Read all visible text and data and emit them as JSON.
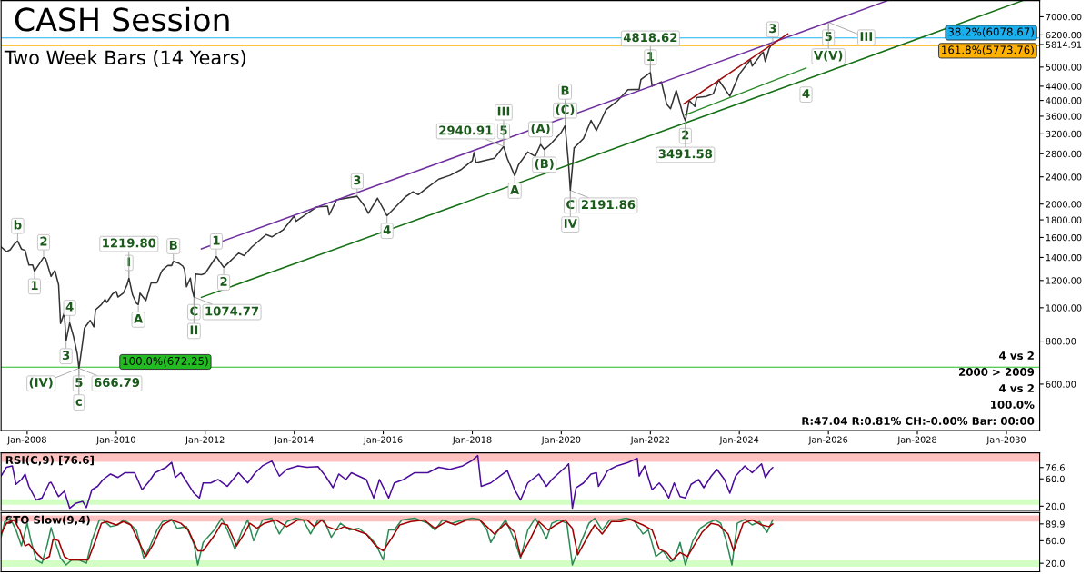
{
  "chart_data": [
    {
      "type": "line",
      "title": "CASH Session",
      "subtitle": "Two Week Bars (14 Years)",
      "log": "y",
      "grid": false,
      "xlim": [
        "2007-06-01",
        "2030-10-01"
      ],
      "ylim": [
        440,
        7800
      ],
      "xticks": [
        {
          "value": "2008-01-01",
          "label": "Jan-2008"
        },
        {
          "value": "2010-01-01",
          "label": "Jan-2010"
        },
        {
          "value": "2012-01-01",
          "label": "Jan-2012"
        },
        {
          "value": "2014-01-01",
          "label": "Jan-2014"
        },
        {
          "value": "2016-01-01",
          "label": "Jan-2016"
        },
        {
          "value": "2018-01-01",
          "label": "Jan-2018"
        },
        {
          "value": "2020-01-01",
          "label": "Jan-2020"
        },
        {
          "value": "2022-01-01",
          "label": "Jan-2022"
        },
        {
          "value": "2024-01-01",
          "label": "Jan-2024"
        },
        {
          "value": "2026-01-01",
          "label": "Jan-2026"
        },
        {
          "value": "2028-01-01",
          "label": "Jan-2028"
        },
        {
          "value": "2030-01-01",
          "label": "Jan-2030"
        }
      ],
      "yticks": [
        {
          "value": 600,
          "label": "600.00"
        },
        {
          "value": 800,
          "label": "800.00"
        },
        {
          "value": 1000,
          "label": "1000.00"
        },
        {
          "value": 1200,
          "label": "1200.00"
        },
        {
          "value": 1400,
          "label": "1400.00"
        },
        {
          "value": 1600,
          "label": "1600.00"
        },
        {
          "value": 1800,
          "label": "1800.00"
        },
        {
          "value": 2000,
          "label": "2000.00"
        },
        {
          "value": 2400,
          "label": "2400.00"
        },
        {
          "value": 2800,
          "label": "2800.00"
        },
        {
          "value": 3200,
          "label": "3200.00"
        },
        {
          "value": 3600,
          "label": "3600.00"
        },
        {
          "value": 4000,
          "label": "4000.00"
        },
        {
          "value": 4400,
          "label": "4400.00"
        },
        {
          "value": 5000,
          "label": "5000.00"
        },
        {
          "value": 5814.91,
          "label": "5814.91"
        },
        {
          "value": 6200,
          "label": "6200.00"
        },
        {
          "value": 7000,
          "label": "7000.00"
        }
      ],
      "series": [
        {
          "color": "#333333",
          "x": [
            "2007-06-01",
            "2007-07-15",
            "2007-08-15",
            "2007-09-15",
            "2007-10-15",
            "2007-11-15",
            "2007-12-15",
            "2008-01-15",
            "2008-02-15",
            "2008-03-01",
            "2008-05-15",
            "2008-06-01",
            "2008-07-01",
            "2008-07-15",
            "2008-08-15",
            "2008-09-15",
            "2008-10-01",
            "2008-11-01",
            "2008-11-15",
            "2008-12-15",
            "2009-01-15",
            "2009-02-15",
            "2009-03-01",
            "2009-04-01",
            "2009-04-15",
            "2009-06-01",
            "2009-07-01",
            "2009-07-15",
            "2009-09-01",
            "2009-10-01",
            "2009-10-15",
            "2009-12-01",
            "2010-01-01",
            "2010-01-15",
            "2010-03-01",
            "2010-04-01",
            "2010-04-15",
            "2010-05-15",
            "2010-06-15",
            "2010-07-01",
            "2010-07-15",
            "2010-09-01",
            "2010-10-01",
            "2010-10-15",
            "2010-12-01",
            "2011-01-01",
            "2011-01-15",
            "2011-03-01",
            "2011-04-01",
            "2011-04-15",
            "2011-06-01",
            "2011-07-01",
            "2011-07-15",
            "2011-08-01",
            "2011-09-01",
            "2011-09-15",
            "2011-10-01",
            "2011-10-15",
            "2011-12-01",
            "2012-01-01",
            "2012-04-01",
            "2012-06-01",
            "2012-10-01",
            "2012-11-15",
            "2013-01-15",
            "2013-05-15",
            "2013-07-01",
            "2013-10-01",
            "2014-01-01",
            "2014-01-15",
            "2014-07-01",
            "2014-10-01",
            "2014-10-15",
            "2014-12-15",
            "2015-06-01",
            "2015-08-01",
            "2015-09-01",
            "2015-11-15",
            "2016-01-15",
            "2016-02-01",
            "2016-07-01",
            "2016-09-01",
            "2016-10-15",
            "2017-01-01",
            "2017-04-01",
            "2017-07-01",
            "2017-10-01",
            "2018-01-01",
            "2018-01-15",
            "2018-02-01",
            "2018-07-01",
            "2018-09-15",
            "2018-10-15",
            "2018-12-15",
            "2019-01-15",
            "2019-04-01",
            "2019-06-01",
            "2019-07-15",
            "2019-08-15",
            "2019-10-01",
            "2020-01-01",
            "2020-02-01",
            "2020-03-01",
            "2020-03-15",
            "2020-04-15",
            "2020-07-01",
            "2020-09-01",
            "2020-10-15",
            "2021-01-01",
            "2021-04-01",
            "2021-07-01",
            "2021-10-01",
            "2021-10-15",
            "2022-01-01",
            "2022-01-15",
            "2022-04-01",
            "2022-05-15",
            "2022-06-15",
            "2022-08-01",
            "2022-10-01",
            "2022-10-15",
            "2022-11-15",
            "2023-01-01",
            "2023-01-15",
            "2023-04-01",
            "2023-06-01",
            "2023-07-15",
            "2023-10-15",
            "2024-01-01",
            "2024-04-01",
            "2024-04-15",
            "2024-07-01",
            "2024-07-15",
            "2024-08-01",
            "2024-09-01",
            "2024-09-15",
            "2024-10-01"
          ],
          "values": [
            1503,
            1455,
            1474,
            1527,
            1562,
            1481,
            1468,
            1331,
            1331,
            1276,
            1400,
            1388,
            1280,
            1234,
            1283,
            1166,
            900,
            968,
            800,
            903,
            826,
            735,
            666.79,
            798,
            873,
            919,
            880,
            987,
            1021,
            1057,
            1036,
            1096,
            1115,
            1074,
            1104,
            1169,
            1219.8,
            1089,
            1031,
            1022,
            1102,
            1049,
            1141,
            1183,
            1181,
            1258,
            1286,
            1327,
            1326,
            1364,
            1345,
            1321,
            1292,
            1150,
            1219,
            1131,
            1074.77,
            1253,
            1247,
            1258,
            1408,
            1310,
            1441,
            1416,
            1498,
            1631,
            1606,
            1682,
            1848,
            1783,
            1960,
            1972,
            1862,
            2059,
            2107,
            1972,
            1880,
            2080,
            1900,
            1850,
            2099,
            2171,
            2130,
            2239,
            2363,
            2423,
            2519,
            2674,
            2824,
            2640,
            2718,
            2940.91,
            2712,
            2420,
            2600,
            2834,
            2752,
            2980,
            2880,
            2977,
            3231,
            3380,
            2600,
            2191.86,
            2912,
            3100,
            3500,
            3270,
            3756,
            3973,
            4298,
            4308,
            4600,
            4818.62,
            4400,
            4530,
            3900,
            3785,
            4280,
            3586,
            3491.58,
            4000,
            3840,
            4077,
            4109,
            4180,
            4589,
            4117,
            4770,
            5254,
            5036,
            5460,
            5522,
            5186,
            5648,
            5762,
            5815
          ]
        },
        {
          "color": "#7030a0",
          "x": [
            "2011-12-01",
            "2026-01-01",
            "2027-05-01"
          ],
          "values": [
            1483,
            6745,
            7800
          ]
        },
        {
          "color": "#157015",
          "x": [
            "2011-12-01",
            "2025-07-01",
            "2030-05-15"
          ],
          "values": [
            1072,
            4603,
            7800
          ]
        },
        {
          "color": "#2e8b2e",
          "x": [
            "2022-10-15",
            "2025-07-01"
          ],
          "values": [
            3633,
            4968
          ]
        },
        {
          "color": "#a01010",
          "x": [
            "2022-10-01",
            "2025-02-01"
          ],
          "values": [
            3906,
            6240
          ]
        }
      ],
      "ref_lines": [
        {
          "axis": "y",
          "value": 672.25,
          "label": "100.0%(672.25)",
          "color": "#22bb22"
        },
        {
          "axis": "y",
          "value": 5773.76,
          "label": "161.8%(5773.76)",
          "color": "#ffb000"
        },
        {
          "axis": "y",
          "value": 6078.67,
          "label": "38.2%(6078.67)",
          "color": "#1ab0f0"
        }
      ],
      "annotations": [
        {
          "text": "b",
          "x": "2007-10-15",
          "y": 1562
        },
        {
          "text": "1",
          "x": "2008-03-01",
          "y": 1276
        },
        {
          "text": "2",
          "x": "2008-05-15",
          "y": 1400
        },
        {
          "text": "3",
          "x": "2008-11-15",
          "y": 800
        },
        {
          "text": "4",
          "x": "2008-12-15",
          "y": 903
        },
        {
          "text": "5",
          "x": "2009-03-01",
          "y": 666.79
        },
        {
          "text": "c",
          "x": "2009-03-01",
          "y": 666.79
        },
        {
          "text": "666.79",
          "x": "2009-03-01",
          "y": 666.79
        },
        {
          "text": "(IV)",
          "x": "2009-03-01",
          "y": 666.79
        },
        {
          "text": "I",
          "x": "2010-04-15",
          "y": 1219.8
        },
        {
          "text": "1219.80",
          "x": "2010-04-15",
          "y": 1219.8
        },
        {
          "text": "A",
          "x": "2010-07-01",
          "y": 1022
        },
        {
          "text": "B",
          "x": "2011-04-15",
          "y": 1364
        },
        {
          "text": "C",
          "x": "2011-10-01",
          "y": 1074.77
        },
        {
          "text": "II",
          "x": "2011-10-01",
          "y": 1074.77
        },
        {
          "text": "1074.77",
          "x": "2011-10-01",
          "y": 1074.77
        },
        {
          "text": "1",
          "x": "2012-04-01",
          "y": 1408
        },
        {
          "text": "2",
          "x": "2012-06-01",
          "y": 1310
        },
        {
          "text": "3",
          "x": "2015-06-01",
          "y": 2107
        },
        {
          "text": "4",
          "x": "2016-02-01",
          "y": 1850
        },
        {
          "text": "5",
          "x": "2018-09-15",
          "y": 2940.91
        },
        {
          "text": "III",
          "x": "2018-09-15",
          "y": 2940.91
        },
        {
          "text": "2940.91",
          "x": "2018-09-15",
          "y": 2940.91
        },
        {
          "text": "A",
          "x": "2018-12-15",
          "y": 2420
        },
        {
          "text": "(A)",
          "x": "2019-07-15",
          "y": 2980
        },
        {
          "text": "(B)",
          "x": "2019-08-15",
          "y": 2880
        },
        {
          "text": "(C)",
          "x": "2020-02-01",
          "y": 3380
        },
        {
          "text": "B",
          "x": "2020-02-01",
          "y": 3380
        },
        {
          "text": "C",
          "x": "2020-03-15",
          "y": 2191.86
        },
        {
          "text": "IV",
          "x": "2020-03-15",
          "y": 2191.86
        },
        {
          "text": "2191.86",
          "x": "2020-03-15",
          "y": 2191.86
        },
        {
          "text": "1",
          "x": "2022-01-01",
          "y": 4818.62
        },
        {
          "text": "4818.62",
          "x": "2022-01-01",
          "y": 4818.62
        },
        {
          "text": "2",
          "x": "2022-10-15",
          "y": 3491.58
        },
        {
          "text": "3491.58",
          "x": "2022-10-15",
          "y": 3491.58
        },
        {
          "text": "3",
          "x": "2024-10-01",
          "y": 5815
        },
        {
          "text": "4",
          "x": "2025-07-01",
          "y": 4603
        },
        {
          "text": "5",
          "x": "2026-01-01",
          "y": 6745
        },
        {
          "text": "V(V)",
          "x": "2026-01-01",
          "y": 6745
        },
        {
          "text": "III",
          "x": "2026-01-01",
          "y": 6745
        },
        "4 vs 2",
        "2000 > 2009",
        "4 vs 2",
        "100.0%",
        "R:47.04 R:0.81% CH:-0.00% Bar: 00:00"
      ]
    },
    {
      "type": "line",
      "title": "RSI(C,9) [76.6]",
      "grid": false,
      "tick_labels": "y",
      "xlim": [
        "2007-06-01",
        "2030-10-01"
      ],
      "ylim": [
        14,
        98
      ],
      "yticks": [
        {
          "value": 20,
          "label": "20.0"
        },
        {
          "value": 60,
          "label": "60.0"
        },
        {
          "value": 76.6,
          "label": "76.6"
        }
      ],
      "bands": [
        {
          "axis": "y",
          "from": 85,
          "to": 98,
          "color": "#ffc0c0"
        },
        {
          "axis": "y",
          "from": 22,
          "to": 30,
          "color": "#d4ffc4"
        }
      ],
      "series": [
        {
          "color": "#4b0c9c",
          "x": [
            "2007-06-01",
            "2007-07-15",
            "2007-09-01",
            "2007-10-01",
            "2007-11-15",
            "2007-12-15",
            "2008-01-15",
            "2008-03-15",
            "2008-05-01",
            "2008-07-01",
            "2008-07-15",
            "2008-09-15",
            "2008-11-01",
            "2008-12-15",
            "2009-02-01",
            "2009-04-01",
            "2009-05-01",
            "2009-06-15",
            "2009-08-01",
            "2009-09-15",
            "2009-11-15",
            "2010-01-15",
            "2010-03-15",
            "2010-06-01",
            "2010-08-01",
            "2010-10-01",
            "2010-11-15",
            "2011-02-15",
            "2011-04-01",
            "2011-05-01",
            "2011-06-15",
            "2011-10-01",
            "2011-11-15",
            "2011-12-15",
            "2012-02-15",
            "2012-04-15",
            "2012-07-01",
            "2012-10-01",
            "2012-12-15",
            "2013-02-15",
            "2013-04-15",
            "2013-07-01",
            "2013-09-01",
            "2013-11-01",
            "2014-02-01",
            "2014-04-15",
            "2014-07-15",
            "2014-09-15",
            "2014-11-15",
            "2015-01-01",
            "2015-03-01",
            "2015-04-15",
            "2015-08-15",
            "2015-10-15",
            "2015-12-01",
            "2016-02-15",
            "2016-04-01",
            "2016-06-15",
            "2016-09-15",
            "2017-01-01",
            "2017-04-01",
            "2017-07-01",
            "2017-10-15",
            "2018-01-01",
            "2018-02-15",
            "2018-03-15",
            "2018-06-01",
            "2018-10-15",
            "2018-12-15",
            "2019-02-01",
            "2019-04-01",
            "2019-07-01",
            "2019-09-01",
            "2019-10-15",
            "2019-12-15",
            "2020-02-15",
            "2020-03-01",
            "2020-04-01",
            "2020-05-01",
            "2020-07-01",
            "2020-09-01",
            "2020-10-15",
            "2020-11-01",
            "2021-01-15",
            "2021-04-01",
            "2021-07-01",
            "2021-09-15",
            "2021-10-01",
            "2021-11-15",
            "2022-01-15",
            "2022-03-15",
            "2022-04-15",
            "2022-06-01",
            "2022-07-15",
            "2022-09-01",
            "2022-10-15",
            "2022-12-01",
            "2023-02-01",
            "2023-03-15",
            "2023-05-15",
            "2023-07-01",
            "2023-09-01",
            "2023-10-15",
            "2023-12-01",
            "2024-02-15",
            "2024-04-15",
            "2024-07-01",
            "2024-08-01",
            "2024-09-15",
            "2024-10-01"
          ],
          "values": [
            64,
            77,
            79,
            52,
            59,
            67,
            49,
            29,
            32,
            54,
            55,
            34,
            42,
            17,
            24,
            27,
            18,
            44,
            49,
            59,
            67,
            62,
            69,
            69,
            44,
            57,
            69,
            77,
            84,
            62,
            69,
            39,
            32,
            54,
            54,
            59,
            49,
            69,
            54,
            69,
            79,
            86,
            64,
            74,
            79,
            77,
            78,
            64,
            47,
            67,
            59,
            69,
            59,
            32,
            59,
            32,
            54,
            59,
            69,
            69,
            77,
            74,
            79,
            87,
            94,
            49,
            54,
            72,
            44,
            29,
            54,
            67,
            49,
            59,
            69,
            79,
            82,
            17,
            47,
            54,
            67,
            69,
            49,
            72,
            79,
            84,
            90,
            64,
            79,
            44,
            54,
            47,
            32,
            54,
            34,
            32,
            52,
            59,
            47,
            64,
            74,
            59,
            39,
            64,
            79,
            69,
            82,
            62,
            74,
            76.6
          ]
        }
      ]
    },
    {
      "type": "line",
      "title": "STO Slow(9,4)",
      "grid": false,
      "tick_labels": "y",
      "xlim": [
        "2007-06-01",
        "2030-10-01"
      ],
      "ylim": [
        5,
        110
      ],
      "yticks": [
        {
          "value": 20,
          "label": "20.0"
        },
        {
          "value": 60,
          "label": "60.0"
        },
        {
          "value": 89.9,
          "label": "89.9"
        }
      ],
      "bands": [
        {
          "axis": "y",
          "from": 94,
          "to": 105,
          "color": "#ffc0c0"
        },
        {
          "axis": "y",
          "from": 14,
          "to": 25,
          "color": "#d4ffc4"
        }
      ],
      "series": [
        {
          "color": "#2e8b57",
          "x": [
            "2007-06-01",
            "2007-07-01",
            "2007-08-15",
            "2007-10-01",
            "2007-11-15",
            "2008-01-01",
            "2008-02-01",
            "2008-03-15",
            "2008-05-01",
            "2008-06-15",
            "2008-07-15",
            "2008-08-15",
            "2008-10-01",
            "2008-11-15",
            "2009-01-01",
            "2009-03-01",
            "2009-05-01",
            "2009-06-15",
            "2009-08-15",
            "2009-09-15",
            "2009-11-15",
            "2010-01-15",
            "2010-03-01",
            "2010-04-15",
            "2010-06-15",
            "2010-08-15",
            "2010-10-01",
            "2010-12-01",
            "2011-01-15",
            "2011-04-01",
            "2011-05-15",
            "2011-08-01",
            "2011-10-01",
            "2011-11-01",
            "2011-12-15",
            "2012-03-15",
            "2012-05-15",
            "2012-07-01",
            "2012-09-01",
            "2012-11-01",
            "2012-12-15",
            "2013-02-01",
            "2013-04-15",
            "2013-07-01",
            "2013-09-01",
            "2013-11-01",
            "2014-01-15",
            "2014-03-15",
            "2014-05-15",
            "2014-07-15",
            "2014-09-01",
            "2014-11-01",
            "2015-01-15",
            "2015-04-01",
            "2015-06-15",
            "2015-09-15",
            "2015-11-01",
            "2016-01-01",
            "2016-02-15",
            "2016-04-01",
            "2016-06-01",
            "2016-09-15",
            "2017-01-01",
            "2017-03-01",
            "2017-05-01",
            "2017-07-15",
            "2017-10-15",
            "2018-01-01",
            "2018-03-01",
            "2018-05-01",
            "2018-06-01",
            "2018-08-01",
            "2018-10-01",
            "2018-12-15",
            "2019-02-01",
            "2019-04-01",
            "2019-06-01",
            "2019-07-15",
            "2019-09-01",
            "2019-10-15",
            "2019-12-15",
            "2020-02-15",
            "2020-04-01",
            "2020-06-15",
            "2020-08-15",
            "2020-10-01",
            "2020-12-01",
            "2021-02-01",
            "2021-04-01",
            "2021-06-15",
            "2021-08-15",
            "2021-11-01",
            "2021-12-15",
            "2022-02-15",
            "2022-04-15",
            "2022-06-15",
            "2022-07-15",
            "2022-09-01",
            "2022-10-15",
            "2022-12-15",
            "2023-02-15",
            "2023-04-15",
            "2023-06-15",
            "2023-08-01",
            "2023-09-15",
            "2023-11-01",
            "2023-12-15",
            "2024-02-15",
            "2024-04-15",
            "2024-06-15",
            "2024-08-15",
            "2024-10-01"
          ],
          "values": [
            66,
            94,
            100,
            79,
            51,
            91,
            60,
            26,
            20,
            54,
            83,
            60,
            29,
            17,
            26,
            26,
            20,
            60,
            97,
            97,
            85,
            88,
            97,
            91,
            79,
            29,
            48,
            79,
            94,
            98,
            82,
            85,
            54,
            17,
            57,
            79,
            100,
            79,
            45,
            79,
            97,
            60,
            97,
            100,
            72,
            94,
            100,
            97,
            72,
            97,
            97,
            66,
            91,
            79,
            82,
            66,
            54,
            26,
            79,
            79,
            97,
            100,
            91,
            79,
            97,
            91,
            97,
            100,
            98,
            79,
            57,
            79,
            97,
            60,
            29,
            79,
            100,
            85,
            63,
            91,
            97,
            91,
            17,
            60,
            91,
            100,
            79,
            97,
            97,
            100,
            97,
            72,
            79,
            32,
            42,
            23,
            26,
            57,
            17,
            60,
            82,
            91,
            97,
            91,
            60,
            17,
            91,
            98,
            88,
            94,
            75,
            97
          ]
        },
        {
          "color": "#a00000",
          "x": [
            "2007-06-01",
            "2007-07-15",
            "2007-09-15",
            "2007-11-01",
            "2007-12-15",
            "2008-01-15",
            "2008-04-01",
            "2008-05-15",
            "2008-07-01",
            "2008-08-01",
            "2008-09-15",
            "2008-11-01",
            "2008-12-15",
            "2009-03-01",
            "2009-05-15",
            "2009-07-15",
            "2009-09-01",
            "2009-10-15",
            "2010-01-01",
            "2010-03-01",
            "2010-05-01",
            "2010-07-15",
            "2010-09-01",
            "2010-11-01",
            "2011-01-15",
            "2011-04-01",
            "2011-06-15",
            "2011-08-15",
            "2011-11-01",
            "2011-12-15",
            "2012-03-15",
            "2012-05-15",
            "2012-07-01",
            "2012-09-15",
            "2012-11-15",
            "2013-01-01",
            "2013-03-01",
            "2013-05-01",
            "2013-08-01",
            "2013-11-01",
            "2014-02-01",
            "2014-04-15",
            "2014-06-15",
            "2014-08-15",
            "2014-10-01",
            "2014-12-15",
            "2015-02-15",
            "2015-05-15",
            "2015-08-15",
            "2015-11-01",
            "2016-01-01",
            "2016-03-15",
            "2016-05-15",
            "2016-08-15",
            "2016-12-01",
            "2017-03-01",
            "2017-06-01",
            "2017-08-15",
            "2017-11-15",
            "2018-03-01",
            "2018-05-01",
            "2018-07-01",
            "2018-10-01",
            "2018-12-15",
            "2019-02-01",
            "2019-04-15",
            "2019-07-01",
            "2019-09-15",
            "2019-11-15",
            "2020-02-01",
            "2020-04-01",
            "2020-05-15",
            "2020-08-01",
            "2020-10-01",
            "2020-12-01",
            "2021-02-15",
            "2021-05-01",
            "2021-07-15",
            "2021-11-01",
            "2022-01-15",
            "2022-03-15",
            "2022-05-15",
            "2022-07-01",
            "2022-09-01",
            "2022-11-01",
            "2023-01-01",
            "2023-03-01",
            "2023-05-15",
            "2023-07-15",
            "2023-10-01",
            "2023-11-15",
            "2024-02-01",
            "2024-04-15",
            "2024-07-01",
            "2024-09-01",
            "2024-10-01"
          ],
          "values": [
            72,
            91,
            97,
            79,
            51,
            54,
            35,
            26,
            32,
            63,
            60,
            32,
            26,
            26,
            26,
            60,
            91,
            94,
            88,
            94,
            88,
            54,
            32,
            54,
            88,
            97,
            91,
            79,
            42,
            42,
            69,
            91,
            88,
            51,
            72,
            91,
            82,
            91,
            97,
            85,
            97,
            97,
            85,
            97,
            85,
            79,
            85,
            79,
            72,
            51,
            42,
            66,
            88,
            94,
            97,
            82,
            94,
            88,
            97,
            97,
            85,
            72,
            91,
            75,
            32,
            60,
            94,
            79,
            88,
            97,
            82,
            35,
            66,
            88,
            72,
            94,
            94,
            98,
            88,
            79,
            45,
            39,
            26,
            39,
            32,
            54,
            75,
            91,
            88,
            72,
            42,
            91,
            97,
            88,
            85,
            89.9
          ]
        }
      ]
    }
  ]
}
